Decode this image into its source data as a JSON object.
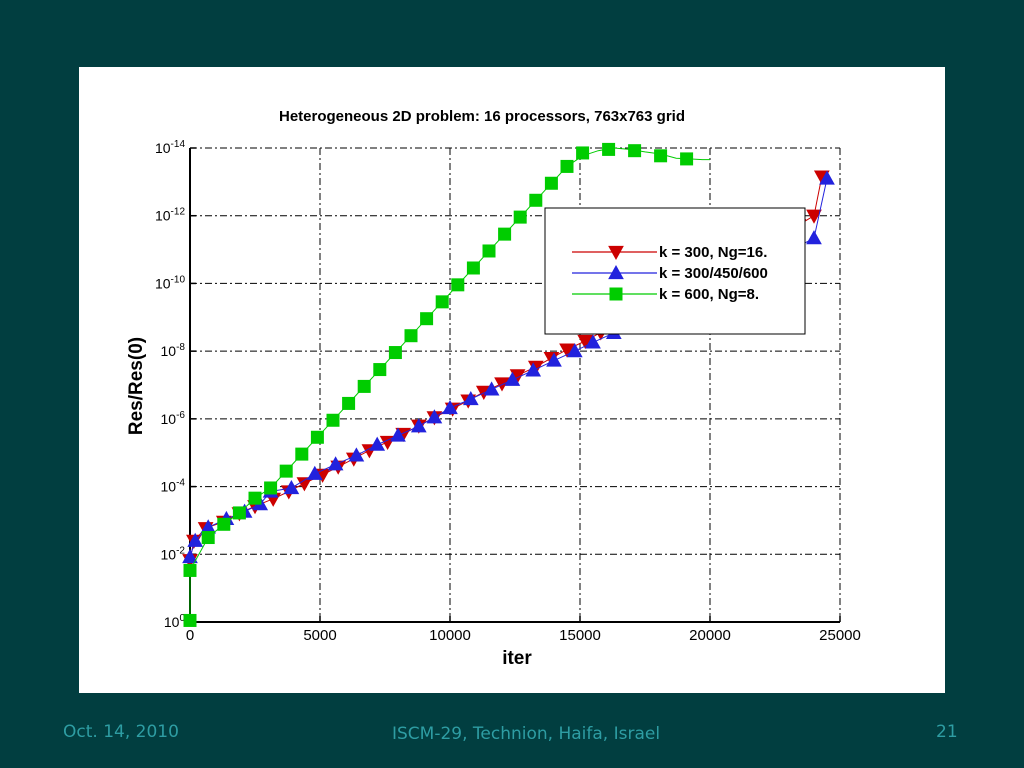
{
  "footer": {
    "date": "Oct. 14, 2010",
    "venue": "ISCM-29, Technion, Haifa, Israel",
    "page": "21"
  },
  "colors": {
    "background": "#013e40",
    "footer_text": "#2e9da3",
    "panel": "#ffffff"
  },
  "chart_data": {
    "type": "line",
    "title": "Heterogeneous 2D problem:  16 processors, 763x763 grid",
    "xlabel": "iter",
    "ylabel": "Res/Res(0)",
    "xlim": [
      0,
      25000
    ],
    "ylim_exponent": [
      -14,
      0
    ],
    "log_y": true,
    "x_ticks": [
      0,
      5000,
      10000,
      15000,
      20000,
      25000
    ],
    "y_tick_exponents": [
      0,
      -2,
      -4,
      -6,
      -8,
      -10,
      -12,
      -14
    ],
    "grid": true,
    "legend_position": "top-right",
    "series": [
      {
        "name": "k = 300,  Ng=16.",
        "color": "#cc0000",
        "marker": "triangle-down",
        "x": [
          0,
          150,
          600,
          1300,
          1900,
          2500,
          3200,
          3800,
          4400,
          5100,
          5700,
          6300,
          6900,
          7600,
          8200,
          8800,
          9400,
          10100,
          10700,
          11300,
          12000,
          12600,
          13300,
          13900,
          14500,
          15200,
          15800,
          16400,
          17100,
          17700,
          18300,
          19000,
          19600,
          20200,
          20900,
          21500,
          22100,
          22700,
          23400,
          24000,
          24300
        ],
        "y": [
          0.015,
          0.004,
          0.0017,
          0.0011,
          0.00062,
          0.00038,
          0.00023,
          0.00014,
          8e-05,
          4.5e-05,
          2.6e-05,
          1.5e-05,
          8.5e-06,
          4.8e-06,
          2.8e-06,
          1.6e-06,
          9e-07,
          5e-07,
          2.9e-07,
          1.6e-07,
          9e-08,
          5.2e-08,
          2.9e-08,
          1.6e-08,
          9e-09,
          5e-09,
          2.8e-09,
          1.55e-09,
          8.5e-10,
          4.7e-10,
          2.6e-10,
          1.4e-10,
          7.6e-11,
          4.1e-11,
          2.2e-11,
          1.2e-11,
          6.5e-12,
          3.5e-12,
          1.9e-12,
          1e-12,
          7e-14
        ]
      },
      {
        "name": "k = 300/450/600",
        "color": "#2222dd",
        "marker": "triangle-up",
        "x": [
          0,
          200,
          700,
          1400,
          2100,
          2700,
          3100,
          3900,
          4800,
          5600,
          6400,
          7200,
          8000,
          8800,
          9400,
          10000,
          10800,
          11600,
          12400,
          13200,
          14000,
          14800,
          15500,
          16300,
          17000,
          17800,
          18600,
          19400,
          20100,
          20900,
          21700,
          22500,
          23300,
          24000,
          24500
        ],
        "y": [
          0.012,
          0.004,
          0.0016,
          0.0009,
          0.00055,
          0.00033,
          0.00014,
          0.00011,
          4.2e-05,
          2.2e-05,
          1.2e-05,
          5.8e-06,
          3.1e-06,
          1.65e-06,
          9e-07,
          4.8e-07,
          2.6e-07,
          1.35e-07,
          7e-08,
          3.7e-08,
          1.9e-08,
          1e-08,
          5.5e-09,
          2.9e-09,
          1.5e-09,
          8e-10,
          4.2e-10,
          2.2e-10,
          1.15e-10,
          6e-11,
          3.2e-11,
          1.7e-11,
          8.8e-12,
          4.6e-12,
          8e-14
        ]
      },
      {
        "name": "k = 600,  Ng=8.",
        "color": "#00cc00",
        "marker": "square",
        "x": [
          0,
          0,
          700,
          1300,
          1900,
          2500,
          3100,
          3700,
          4300,
          4900,
          5500,
          6100,
          6700,
          7300,
          7900,
          8500,
          9100,
          9700,
          10300,
          10900,
          11500,
          12100,
          12700,
          13300,
          13900,
          14500,
          15100,
          15700,
          16300,
          16900,
          17500,
          18100,
          18700,
          19200,
          19700,
          20000
        ],
        "y": [
          0.9,
          0.03,
          0.0032,
          0.0013,
          0.0006,
          0.00022,
          0.00011,
          3.5e-05,
          1.1e-05,
          3.5e-06,
          1.1e-06,
          3.5e-07,
          1.1e-07,
          3.5e-08,
          1.1e-08,
          3.5e-09,
          1.1e-09,
          3.5e-10,
          1.1e-10,
          3.5e-11,
          1.1e-11,
          3.5e-12,
          1.1e-12,
          3.5e-13,
          1.1e-13,
          3.5e-14,
          1.7e-14,
          1.2e-14,
          1e-14,
          1.1e-14,
          1.3e-14,
          1.5e-14,
          2e-14,
          2.1e-14,
          2.2e-14,
          2.2e-14
        ],
        "marker_x": [
          0,
          0,
          700,
          1300,
          1900,
          2500,
          3100,
          3700,
          4300,
          4900,
          5500,
          6100,
          6700,
          7300,
          7900,
          8500,
          9100,
          9700,
          10300,
          10900,
          11500,
          12100,
          12700,
          13300,
          13900,
          14500,
          15100,
          16100,
          17100,
          18100,
          19100
        ],
        "marker_y": [
          0.9,
          0.03,
          0.0032,
          0.0013,
          0.0006,
          0.00022,
          0.00011,
          3.5e-05,
          1.1e-05,
          3.5e-06,
          1.1e-06,
          3.5e-07,
          1.1e-07,
          3.5e-08,
          1.1e-08,
          3.5e-09,
          1.1e-09,
          3.5e-10,
          1.1e-10,
          3.5e-11,
          1.1e-11,
          3.5e-12,
          1.1e-12,
          3.5e-13,
          1.1e-13,
          3.5e-14,
          1.4e-14,
          1.1e-14,
          1.2e-14,
          1.7e-14,
          2.1e-14
        ]
      }
    ]
  }
}
